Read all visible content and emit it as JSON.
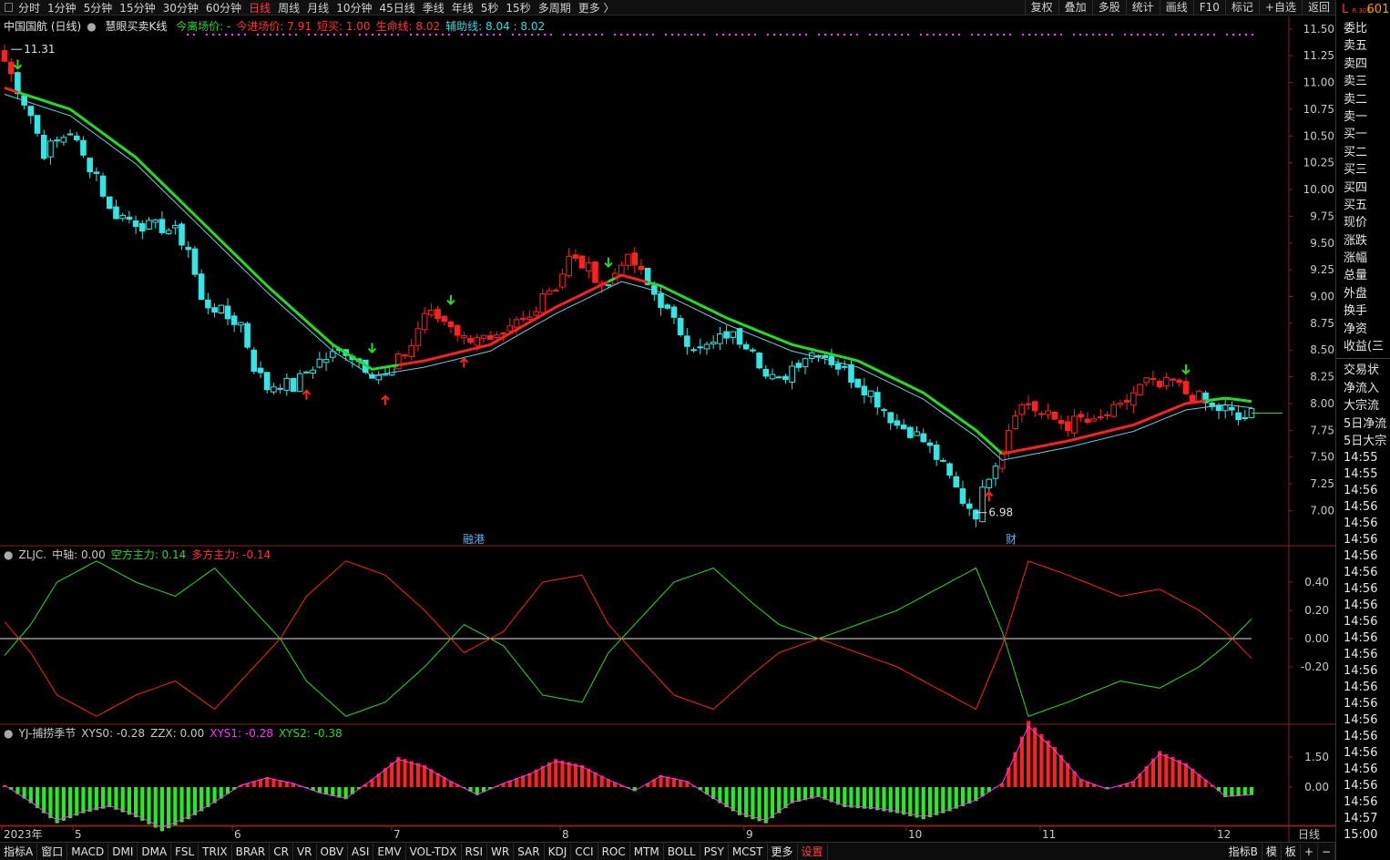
{
  "toolbar": {
    "periods": [
      "分时",
      "1分钟",
      "5分钟",
      "15分钟",
      "30分钟",
      "60分钟",
      "日线",
      "周线",
      "月线",
      "10分钟",
      "45日线",
      "季线",
      "年线",
      "5秒",
      "15秒",
      "多周期",
      "更多 〉"
    ],
    "active_period": "日线",
    "tools": [
      "复权",
      "叠加",
      "多股",
      "统计",
      "画线",
      "F10",
      "标记",
      "+自选",
      "返回"
    ]
  },
  "main_legend": {
    "stock": "中国国航 (日线)",
    "indicator": "慧眼买卖K线",
    "items": [
      {
        "label": "今离场价: -",
        "color": "#22dd22"
      },
      {
        "label": "今进场价: 7.91",
        "color": "#ff3333"
      },
      {
        "label": "短买: 1.00",
        "color": "#ff3333"
      },
      {
        "label": "生命线: 8.02",
        "color": "#ff3333"
      },
      {
        "label": "辅助线: 8.04 : 8.02",
        "color": "#33dddd"
      }
    ]
  },
  "price_axis": [
    "11.50",
    "11.25",
    "11.00",
    "10.75",
    "10.50",
    "10.25",
    "10.00",
    "9.75",
    "9.50",
    "9.25",
    "9.00",
    "8.75",
    "8.50",
    "8.25",
    "8.00",
    "7.75",
    "7.50",
    "7.25",
    "7.00"
  ],
  "annotations": {
    "high_label": "11.31",
    "low_label": "6.98",
    "event1": "融港",
    "event2": "财"
  },
  "zljc": {
    "legend": [
      {
        "label": "ZLJC.",
        "color": "#c8c8c8"
      },
      {
        "label": "中轴: 0.00",
        "color": "#c8c8c8"
      },
      {
        "label": "空方主力: 0.14",
        "color": "#22dd22"
      },
      {
        "label": "多方主力: -0.14",
        "color": "#ff3333"
      }
    ],
    "axis": [
      "0.40",
      "0.20",
      "0.00",
      "-0.20"
    ]
  },
  "yj": {
    "legend": [
      {
        "label": "YJ-捕捞季节",
        "color": "#c8c8c8"
      },
      {
        "label": "XYS0: -0.28",
        "color": "#c8c8c8"
      },
      {
        "label": "ZZX: 0.00",
        "color": "#c8c8c8"
      },
      {
        "label": "XYS1: -0.28",
        "color": "#ff33ff"
      },
      {
        "label": "XYS2: -0.38",
        "color": "#22dd22"
      }
    ],
    "axis": [
      "1.50",
      "0.00"
    ]
  },
  "date_axis": [
    "2023年",
    "5",
    "6",
    "7",
    "8",
    "9",
    "10",
    "11",
    "12"
  ],
  "date_axis_right": "日线",
  "right_panel": {
    "code_prefix": "L",
    "code_badge": "R 300",
    "code": "601",
    "items1": [
      "委比",
      "卖五",
      "卖四",
      "卖三",
      "卖二",
      "卖一",
      "买一",
      "买二",
      "买三",
      "买四",
      "买五",
      "现价",
      "涨跌",
      "涨幅",
      "总量",
      "外盘",
      "换手",
      "净资",
      "收益(三"
    ],
    "items2": [
      "交易状",
      "净流入",
      "大宗流",
      "5日净流",
      "5日大宗"
    ],
    "times": [
      "14:55",
      "14:55",
      "14:56",
      "14:56",
      "14:56",
      "14:56",
      "14:56",
      "14:56",
      "14:56",
      "14:56",
      "14:56",
      "14:56",
      "14:56",
      "14:56",
      "14:56",
      "14:56",
      "14:56",
      "14:56",
      "14:56",
      "14:56",
      "14:56",
      "14:56",
      "14:57",
      "15:00"
    ]
  },
  "bottom_tabs": [
    "指标A",
    "窗口",
    "MACD",
    "DMI",
    "DMA",
    "FSL",
    "TRIX",
    "BRAR",
    "CR",
    "VR",
    "OBV",
    "ASI",
    "EMV",
    "VOL-TDX",
    "RSI",
    "WR",
    "SAR",
    "KDJ",
    "CCI",
    "ROC",
    "MTM",
    "BOLL",
    "PSY",
    "MCST",
    "更多",
    "设置"
  ],
  "bottom_right": [
    "指标B",
    "模",
    "板",
    "+",
    "−"
  ],
  "chart_data": {
    "type": "candlestick",
    "title": "中国国航 (日线)",
    "x_range": [
      "2023-04",
      "2023-12"
    ],
    "ylim": [
      6.7,
      11.65
    ],
    "close_trend": [
      [
        0,
        11.2
      ],
      [
        2,
        10.95
      ],
      [
        4,
        10.7
      ],
      [
        6,
        10.35
      ],
      [
        8,
        10.45
      ],
      [
        10,
        10.55
      ],
      [
        12,
        10.3
      ],
      [
        14,
        10.15
      ],
      [
        16,
        9.8
      ],
      [
        18,
        9.75
      ],
      [
        20,
        9.7
      ],
      [
        22,
        9.65
      ],
      [
        24,
        9.65
      ],
      [
        26,
        9.6
      ],
      [
        28,
        9.45
      ],
      [
        30,
        8.95
      ],
      [
        32,
        8.9
      ],
      [
        34,
        8.8
      ],
      [
        36,
        8.75
      ],
      [
        38,
        8.35
      ],
      [
        40,
        8.15
      ],
      [
        42,
        8.2
      ],
      [
        44,
        8.15
      ],
      [
        46,
        8.3
      ],
      [
        48,
        8.4
      ],
      [
        50,
        8.45
      ],
      [
        52,
        8.5
      ],
      [
        54,
        8.4
      ],
      [
        56,
        8.3
      ],
      [
        58,
        8.25
      ],
      [
        60,
        8.4
      ],
      [
        62,
        8.55
      ],
      [
        64,
        8.85
      ],
      [
        66,
        8.8
      ],
      [
        68,
        8.75
      ],
      [
        70,
        8.6
      ],
      [
        72,
        8.65
      ],
      [
        74,
        8.55
      ],
      [
        76,
        8.6
      ],
      [
        78,
        8.75
      ],
      [
        80,
        8.8
      ],
      [
        82,
        9.05
      ],
      [
        84,
        9.1
      ],
      [
        86,
        9.35
      ],
      [
        88,
        9.3
      ],
      [
        90,
        9.2
      ],
      [
        92,
        9.1
      ],
      [
        94,
        9.35
      ],
      [
        96,
        9.3
      ],
      [
        98,
        9.1
      ],
      [
        100,
        8.95
      ],
      [
        102,
        8.75
      ],
      [
        104,
        8.6
      ],
      [
        106,
        8.5
      ],
      [
        108,
        8.55
      ],
      [
        110,
        8.65
      ],
      [
        112,
        8.6
      ],
      [
        114,
        8.55
      ],
      [
        116,
        8.25
      ],
      [
        118,
        8.2
      ],
      [
        120,
        8.35
      ],
      [
        122,
        8.45
      ],
      [
        124,
        8.5
      ],
      [
        126,
        8.4
      ],
      [
        128,
        8.3
      ],
      [
        130,
        8.2
      ],
      [
        132,
        8.1
      ],
      [
        134,
        7.95
      ],
      [
        136,
        7.8
      ],
      [
        138,
        7.75
      ],
      [
        140,
        7.65
      ],
      [
        142,
        7.5
      ],
      [
        144,
        7.3
      ],
      [
        146,
        7.1
      ],
      [
        148,
        6.98
      ],
      [
        150,
        7.35
      ],
      [
        152,
        7.6
      ],
      [
        154,
        7.95
      ],
      [
        156,
        8.0
      ],
      [
        158,
        7.9
      ],
      [
        160,
        7.85
      ],
      [
        162,
        7.8
      ],
      [
        164,
        7.85
      ],
      [
        166,
        7.8
      ],
      [
        168,
        7.9
      ],
      [
        170,
        7.95
      ],
      [
        172,
        8.1
      ],
      [
        174,
        8.2
      ],
      [
        176,
        8.15
      ],
      [
        178,
        8.2
      ],
      [
        180,
        8.1
      ],
      [
        182,
        8.05
      ],
      [
        184,
        7.95
      ],
      [
        186,
        7.95
      ],
      [
        188,
        7.85
      ],
      [
        190,
        7.9
      ]
    ],
    "support_line": [
      [
        0,
        10.95
      ],
      [
        10,
        10.75
      ],
      [
        20,
        10.3
      ],
      [
        30,
        9.7
      ],
      [
        40,
        9.1
      ],
      [
        50,
        8.55
      ],
      [
        56,
        8.32
      ],
      [
        64,
        8.4
      ],
      [
        74,
        8.55
      ],
      [
        84,
        8.9
      ],
      [
        94,
        9.2
      ],
      [
        100,
        9.1
      ],
      [
        110,
        8.8
      ],
      [
        120,
        8.55
      ],
      [
        130,
        8.4
      ],
      [
        140,
        8.1
      ],
      [
        148,
        7.75
      ],
      [
        152,
        7.53
      ],
      [
        162,
        7.65
      ],
      [
        172,
        7.8
      ],
      [
        180,
        8.0
      ],
      [
        186,
        8.05
      ],
      [
        190,
        8.02
      ]
    ],
    "zljc_trend": [
      [
        0,
        0.12
      ],
      [
        4,
        -0.1
      ],
      [
        8,
        -0.4
      ],
      [
        14,
        -0.55
      ],
      [
        20,
        -0.4
      ],
      [
        26,
        -0.3
      ],
      [
        32,
        -0.5
      ],
      [
        38,
        -0.2
      ],
      [
        42,
        0.0
      ],
      [
        46,
        0.3
      ],
      [
        52,
        0.55
      ],
      [
        58,
        0.45
      ],
      [
        64,
        0.2
      ],
      [
        70,
        -0.1
      ],
      [
        76,
        0.05
      ],
      [
        82,
        0.4
      ],
      [
        88,
        0.45
      ],
      [
        92,
        0.1
      ],
      [
        96,
        -0.1
      ],
      [
        102,
        -0.4
      ],
      [
        108,
        -0.5
      ],
      [
        114,
        -0.25
      ],
      [
        118,
        -0.1
      ],
      [
        124,
        0.0
      ],
      [
        130,
        -0.1
      ],
      [
        136,
        -0.2
      ],
      [
        142,
        -0.35
      ],
      [
        148,
        -0.5
      ],
      [
        152,
        -0.05
      ],
      [
        156,
        0.55
      ],
      [
        162,
        0.45
      ],
      [
        170,
        0.3
      ],
      [
        176,
        0.35
      ],
      [
        182,
        0.2
      ],
      [
        186,
        0.05
      ],
      [
        190,
        -0.14
      ]
    ],
    "yj_values": [
      [
        0,
        0.1
      ],
      [
        4,
        -0.8
      ],
      [
        8,
        -1.8
      ],
      [
        12,
        -1.3
      ],
      [
        16,
        -1.0
      ],
      [
        20,
        -1.5
      ],
      [
        24,
        -2.2
      ],
      [
        28,
        -1.6
      ],
      [
        32,
        -0.8
      ],
      [
        36,
        0.1
      ],
      [
        40,
        0.5
      ],
      [
        44,
        0.2
      ],
      [
        48,
        -0.3
      ],
      [
        52,
        -0.6
      ],
      [
        56,
        0.4
      ],
      [
        60,
        1.5
      ],
      [
        64,
        1.1
      ],
      [
        68,
        0.3
      ],
      [
        72,
        -0.4
      ],
      [
        76,
        0.2
      ],
      [
        80,
        0.7
      ],
      [
        84,
        1.4
      ],
      [
        88,
        1.1
      ],
      [
        92,
        0.4
      ],
      [
        96,
        -0.2
      ],
      [
        100,
        0.6
      ],
      [
        104,
        0.3
      ],
      [
        108,
        -0.6
      ],
      [
        112,
        -1.4
      ],
      [
        116,
        -1.8
      ],
      [
        120,
        -0.8
      ],
      [
        124,
        -0.5
      ],
      [
        128,
        -1.0
      ],
      [
        132,
        -1.1
      ],
      [
        136,
        -1.3
      ],
      [
        140,
        -1.6
      ],
      [
        144,
        -1.2
      ],
      [
        148,
        -0.7
      ],
      [
        152,
        0.2
      ],
      [
        156,
        3.3
      ],
      [
        160,
        2.0
      ],
      [
        164,
        0.4
      ],
      [
        168,
        -0.1
      ],
      [
        172,
        0.3
      ],
      [
        176,
        1.8
      ],
      [
        180,
        1.2
      ],
      [
        184,
        0.1
      ],
      [
        186,
        -0.5
      ],
      [
        190,
        -0.4
      ]
    ]
  }
}
